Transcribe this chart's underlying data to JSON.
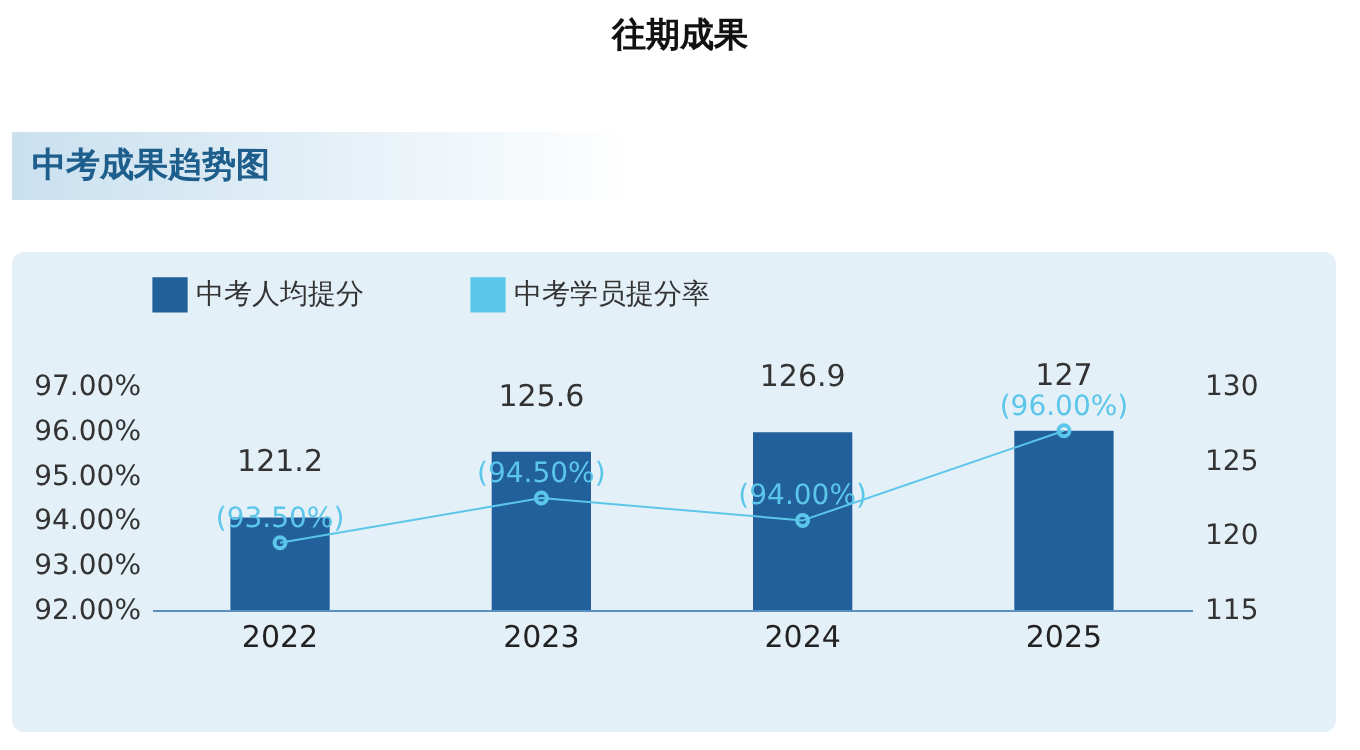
{
  "chart_data": {
    "type": "bar",
    "title": "往期成果",
    "subtitle": "中考成果趋势图",
    "categories": [
      "2022",
      "2023",
      "2024",
      "2025"
    ],
    "series": [
      {
        "name": "中考人均提分",
        "type": "bar",
        "axis": "y2",
        "color": "#21609a",
        "values": [
          121.2,
          125.6,
          126.9,
          127
        ]
      },
      {
        "name": "中考学员提分率",
        "type": "line",
        "axis": "y",
        "color": "#5bc6ea",
        "values": [
          93.5,
          94.5,
          94.0,
          96.0
        ],
        "value_labels": [
          "(93.50%)",
          "(94.50%)",
          "(94.00%)",
          "(96.00%)"
        ]
      }
    ],
    "data_labels": true,
    "ylim": [
      92,
      97
    ],
    "yticks": [
      {
        "value": 92,
        "label": "92.00%"
      },
      {
        "value": 93,
        "label": "93.00%"
      },
      {
        "value": 94,
        "label": "94.00%"
      },
      {
        "value": 95,
        "label": "95.00%"
      },
      {
        "value": 96,
        "label": "96.00%"
      },
      {
        "value": 97,
        "label": "97.00%"
      }
    ],
    "y2lim": [
      115,
      130
    ],
    "y2ticks": [
      115,
      120,
      125,
      130
    ],
    "grid": false,
    "legend": "top",
    "marker": "circle",
    "line_style": "solid"
  }
}
